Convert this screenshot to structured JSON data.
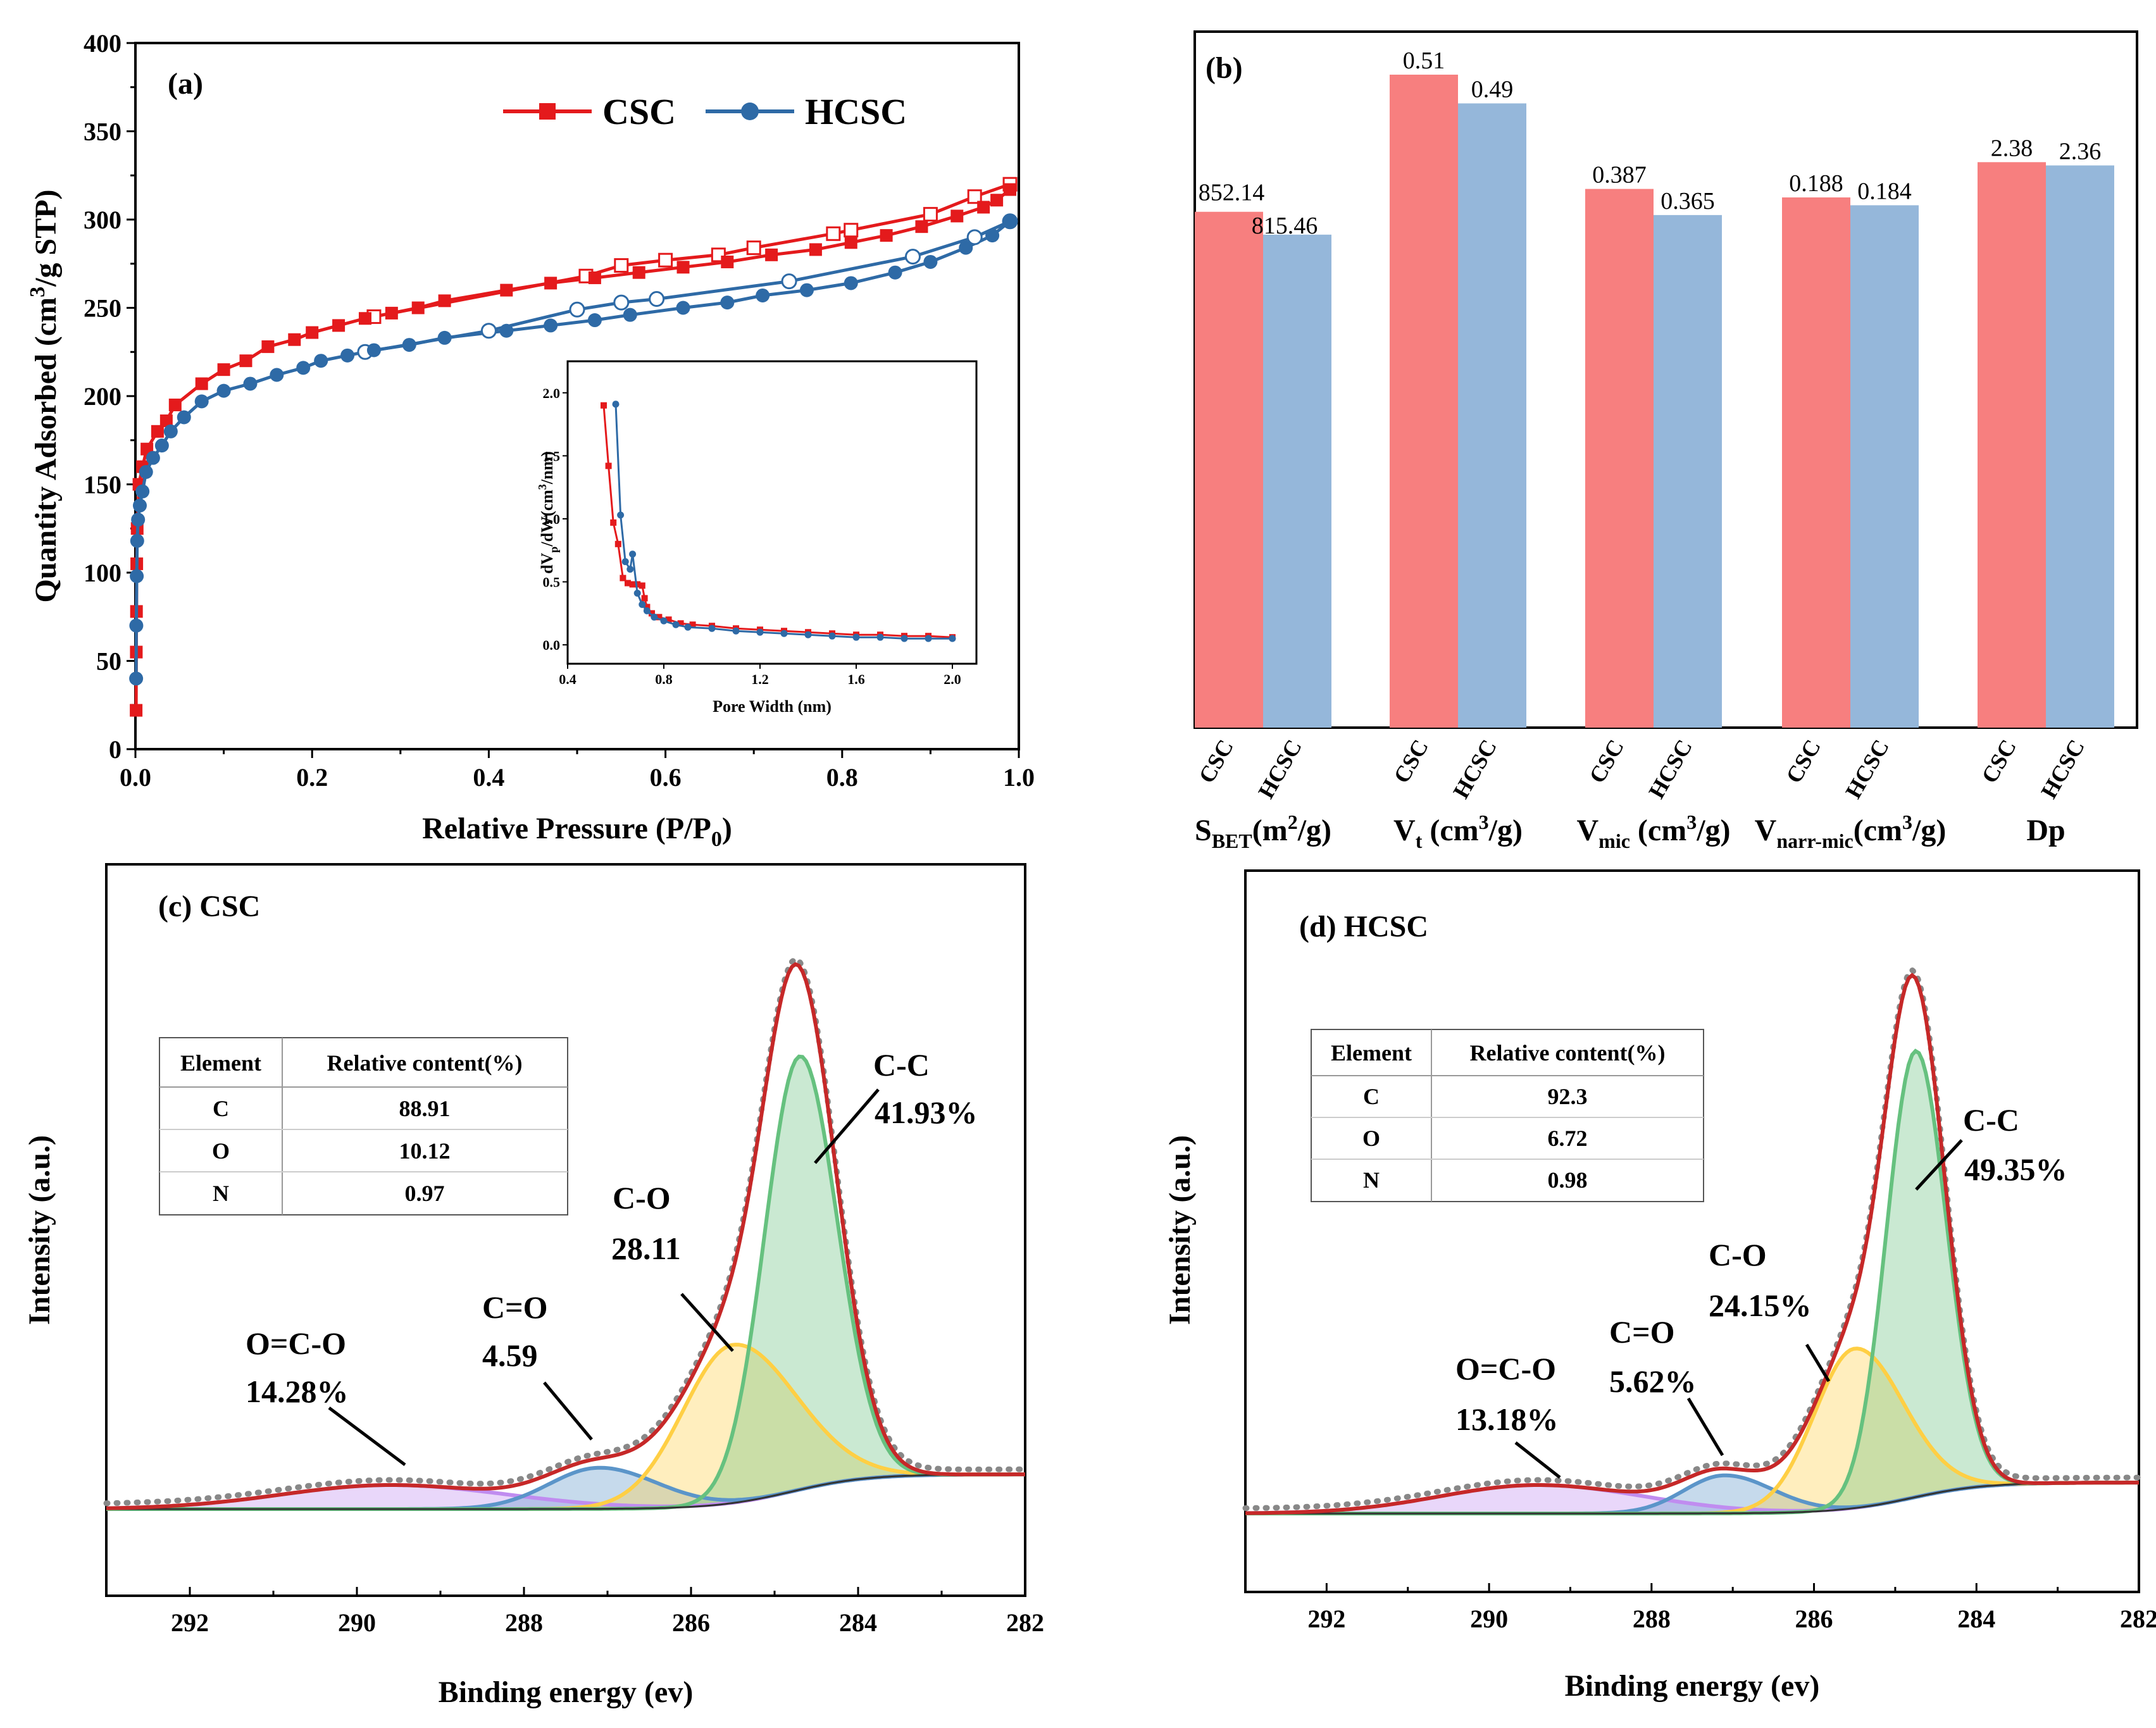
{
  "chart_data": [
    {
      "panel": "(a)",
      "type": "line",
      "xlabel": "Relative Pressure (P/P",
      "xlabel_sub": "0",
      "xlabel_end": ")",
      "ylabel": "Quantity Adsorbed (cm",
      "ylabel_sup": "3",
      "ylabel_end": "/g STP)",
      "xlim": [
        0,
        1.0
      ],
      "ylim": [
        0,
        400
      ],
      "xticks": [
        "0.0",
        "0.2",
        "0.4",
        "0.6",
        "0.8",
        "1.0"
      ],
      "yticks": [
        "0",
        "50",
        "100",
        "150",
        "200",
        "250",
        "300",
        "350",
        "400"
      ],
      "legend": [
        "CSC",
        "HCSC"
      ],
      "series": [
        {
          "name": "CSC",
          "color": "#e41a1c",
          "adsorption": [
            [
              0.0008,
              22
            ],
            [
              0.001,
              55
            ],
            [
              0.0012,
              78
            ],
            [
              0.0015,
              105
            ],
            [
              0.002,
              125
            ],
            [
              0.004,
              150
            ],
            [
              0.008,
              160
            ],
            [
              0.013,
              170
            ],
            [
              0.025,
              180
            ],
            [
              0.035,
              186
            ],
            [
              0.045,
              195
            ],
            [
              0.075,
              207
            ],
            [
              0.1,
              215
            ],
            [
              0.125,
              220
            ],
            [
              0.15,
              228
            ],
            [
              0.18,
              232
            ],
            [
              0.2,
              236
            ],
            [
              0.23,
              240
            ],
            [
              0.26,
              244
            ],
            [
              0.29,
              247
            ],
            [
              0.32,
              250
            ],
            [
              0.35,
              254
            ],
            [
              0.42,
              260
            ],
            [
              0.47,
              264
            ],
            [
              0.52,
              267
            ],
            [
              0.57,
              270
            ],
            [
              0.62,
              273
            ],
            [
              0.67,
              276
            ],
            [
              0.72,
              280
            ],
            [
              0.77,
              283
            ],
            [
              0.81,
              287
            ],
            [
              0.85,
              291
            ],
            [
              0.89,
              296
            ],
            [
              0.93,
              302
            ],
            [
              0.96,
              307
            ],
            [
              0.975,
              311
            ],
            [
              0.99,
              317
            ]
          ],
          "desorption": [
            [
              0.99,
              320
            ],
            [
              0.95,
              313
            ],
            [
              0.9,
              303
            ],
            [
              0.81,
              294
            ],
            [
              0.79,
              292
            ],
            [
              0.7,
              284
            ],
            [
              0.66,
              280
            ],
            [
              0.6,
              277
            ],
            [
              0.55,
              274
            ],
            [
              0.51,
              268
            ],
            [
              0.27,
              245
            ]
          ]
        },
        {
          "name": "HCSC",
          "color": "#2e6aa6",
          "adsorption": [
            [
              0.0008,
              40
            ],
            [
              0.001,
              70
            ],
            [
              0.0015,
              98
            ],
            [
              0.002,
              118
            ],
            [
              0.003,
              130
            ],
            [
              0.005,
              138
            ],
            [
              0.008,
              146
            ],
            [
              0.012,
              157
            ],
            [
              0.02,
              165
            ],
            [
              0.03,
              172
            ],
            [
              0.04,
              180
            ],
            [
              0.055,
              188
            ],
            [
              0.075,
              197
            ],
            [
              0.1,
              203
            ],
            [
              0.13,
              207
            ],
            [
              0.16,
              212
            ],
            [
              0.19,
              216
            ],
            [
              0.21,
              220
            ],
            [
              0.24,
              223
            ],
            [
              0.27,
              226
            ],
            [
              0.31,
              229
            ],
            [
              0.35,
              233
            ],
            [
              0.42,
              237
            ],
            [
              0.47,
              240
            ],
            [
              0.52,
              243
            ],
            [
              0.56,
              246
            ],
            [
              0.62,
              250
            ],
            [
              0.67,
              253
            ],
            [
              0.71,
              257
            ],
            [
              0.76,
              260
            ],
            [
              0.81,
              264
            ],
            [
              0.86,
              270
            ],
            [
              0.9,
              276
            ],
            [
              0.94,
              284
            ],
            [
              0.97,
              291
            ],
            [
              0.99,
              299
            ]
          ],
          "desorption": [
            [
              0.99,
              299
            ],
            [
              0.95,
              290
            ],
            [
              0.88,
              279
            ],
            [
              0.74,
              265
            ],
            [
              0.59,
              255
            ],
            [
              0.55,
              253
            ],
            [
              0.5,
              249
            ],
            [
              0.4,
              237
            ],
            [
              0.26,
              225
            ]
          ]
        }
      ],
      "inset": {
        "type": "line",
        "xlabel": "Pore Width (nm)",
        "ylabel": "dV",
        "ylabel_sub": "p",
        "ylabel_mid": "/dW(cm",
        "ylabel_sup": "3",
        "ylabel_end": "/nm)",
        "xlim": [
          0.4,
          2.1
        ],
        "ylim": [
          -0.15,
          2.25
        ],
        "xticks": [
          "0.4",
          "0.8",
          "1.2",
          "1.6",
          "2.0"
        ],
        "yticks": [
          "0.0",
          "0.5",
          "1.0",
          "1.5",
          "2.0"
        ],
        "series": [
          {
            "name": "CSC",
            "color": "#e41a1c",
            "points": [
              [
                0.55,
                1.9
              ],
              [
                0.57,
                1.42
              ],
              [
                0.59,
                0.97
              ],
              [
                0.61,
                0.8
              ],
              [
                0.63,
                0.53
              ],
              [
                0.65,
                0.49
              ],
              [
                0.67,
                0.48
              ],
              [
                0.69,
                0.48
              ],
              [
                0.71,
                0.47
              ],
              [
                0.72,
                0.37
              ],
              [
                0.73,
                0.3
              ],
              [
                0.75,
                0.25
              ],
              [
                0.78,
                0.22
              ],
              [
                0.82,
                0.2
              ],
              [
                0.87,
                0.17
              ],
              [
                0.92,
                0.16
              ],
              [
                1.0,
                0.15
              ],
              [
                1.1,
                0.13
              ],
              [
                1.2,
                0.12
              ],
              [
                1.3,
                0.11
              ],
              [
                1.4,
                0.1
              ],
              [
                1.5,
                0.09
              ],
              [
                1.6,
                0.08
              ],
              [
                1.7,
                0.08
              ],
              [
                1.8,
                0.07
              ],
              [
                1.9,
                0.07
              ],
              [
                2.0,
                0.06
              ]
            ]
          },
          {
            "name": "HCSC",
            "color": "#2e6aa6",
            "points": [
              [
                0.6,
                1.91
              ],
              [
                0.62,
                1.03
              ],
              [
                0.64,
                0.66
              ],
              [
                0.66,
                0.6
              ],
              [
                0.67,
                0.72
              ],
              [
                0.69,
                0.41
              ],
              [
                0.71,
                0.32
              ],
              [
                0.73,
                0.27
              ],
              [
                0.76,
                0.22
              ],
              [
                0.8,
                0.19
              ],
              [
                0.85,
                0.16
              ],
              [
                0.9,
                0.14
              ],
              [
                1.0,
                0.13
              ],
              [
                1.1,
                0.11
              ],
              [
                1.2,
                0.1
              ],
              [
                1.3,
                0.09
              ],
              [
                1.4,
                0.08
              ],
              [
                1.5,
                0.07
              ],
              [
                1.6,
                0.06
              ],
              [
                1.7,
                0.06
              ],
              [
                1.8,
                0.05
              ],
              [
                1.9,
                0.05
              ],
              [
                2.0,
                0.05
              ]
            ]
          }
        ]
      }
    },
    {
      "panel": "(b)",
      "type": "bar",
      "series_names": [
        "CSC",
        "HCSC"
      ],
      "colors": [
        "#f77f7f",
        "#95b7da"
      ],
      "groups": [
        {
          "name": "S",
          "sub": "BET",
          "unit": "(m",
          "sup": "2",
          "end": "/g)",
          "values": [
            852.14,
            815.46
          ],
          "labels": [
            "852.14",
            "815.46"
          ],
          "fill": [
            0.79,
            0.755
          ]
        },
        {
          "name": "V",
          "sub": "t",
          "unit": " (cm",
          "sup": "3",
          "end": "/g)",
          "values": [
            0.51,
            0.49
          ],
          "labels": [
            "0.51",
            "0.49"
          ],
          "fill": [
            1.0,
            0.956
          ]
        },
        {
          "name": "V",
          "sub": "mic",
          "unit": " (cm",
          "sup": "3",
          "end": "/g)",
          "values": [
            0.387,
            0.365
          ],
          "labels": [
            "0.387",
            "0.365"
          ],
          "fill": [
            0.825,
            0.785
          ]
        },
        {
          "name": "V",
          "sub": "narr-mic",
          "unit": "(cm",
          "sup": "3",
          "end": "/g)",
          "values": [
            0.188,
            0.184
          ],
          "labels": [
            "0.188",
            "0.184"
          ],
          "fill": [
            0.812,
            0.8
          ]
        },
        {
          "name": "Dp",
          "sub": "",
          "unit": "",
          "sup": "",
          "end": "",
          "values": [
            2.38,
            2.36
          ],
          "labels": [
            "2.38",
            "2.36"
          ],
          "fill": [
            0.866,
            0.861
          ]
        }
      ]
    },
    {
      "panel": "(c)",
      "sample": "CSC",
      "type": "line",
      "xlabel": "Binding energy (ev)",
      "ylabel": "Intensity (a.u.)",
      "xlim": [
        293,
        282
      ],
      "xticks": [
        "292",
        "290",
        "288",
        "286",
        "284",
        "282"
      ],
      "table": {
        "headers": [
          "Element",
          "Relative content(%)"
        ],
        "rows": [
          [
            "C",
            "88.91"
          ],
          [
            "O",
            "10.12"
          ],
          [
            "N",
            "0.97"
          ]
        ]
      },
      "peaks": [
        {
          "label": "C-C",
          "value": "41.93%",
          "center": 284.7,
          "color": "#66c17f"
        },
        {
          "label": "C-O",
          "value": "28.11",
          "center": 285.5,
          "color": "#ffcf44"
        },
        {
          "label": "C=O",
          "value": "4.59",
          "center": 287.1,
          "color": "#5b95c9"
        },
        {
          "label": "O=C-O",
          "value": "14.28%",
          "center": 289.5,
          "color": "#c08cf0"
        }
      ]
    },
    {
      "panel": "(d)",
      "sample": "HCSC",
      "type": "line",
      "xlabel": "Binding energy (ev)",
      "ylabel": "Intensity (a.u.)",
      "xlim": [
        293,
        282
      ],
      "xticks": [
        "292",
        "290",
        "288",
        "286",
        "284",
        "282"
      ],
      "table": {
        "headers": [
          "Element",
          "Relative content(%)"
        ],
        "rows": [
          [
            "C",
            "92.3"
          ],
          [
            "O",
            "6.72"
          ],
          [
            "N",
            "0.98"
          ]
        ]
      },
      "peaks": [
        {
          "label": "C-C",
          "value": "49.35%",
          "center": 284.75,
          "color": "#66c17f"
        },
        {
          "label": "C-O",
          "value": "24.15%",
          "center": 285.5,
          "color": "#ffcf44"
        },
        {
          "label": "C=O",
          "value": "5.62%",
          "center": 287.1,
          "color": "#5b95c9"
        },
        {
          "label": "O=C-O",
          "value": "13.18%",
          "center": 289.4,
          "color": "#c08cf0"
        }
      ]
    }
  ]
}
